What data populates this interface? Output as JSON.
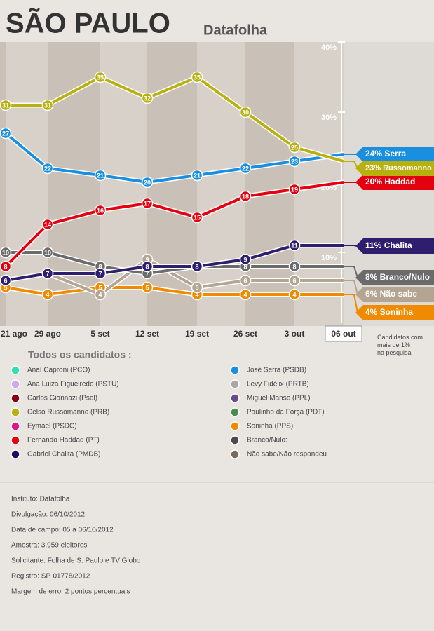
{
  "chart_data": {
    "type": "line",
    "title": "SÃO PAULO",
    "subtitle": "Datafolha",
    "categories": [
      "21 ago",
      "29 ago",
      "5 set",
      "12 set",
      "19 set",
      "26 set",
      "3 out",
      "06 out"
    ],
    "ylim": [
      0,
      40
    ],
    "yticks": [
      {
        "value": 10,
        "label": "10%"
      },
      {
        "value": 20,
        "label": "20%"
      },
      {
        "value": 30,
        "label": "30%"
      },
      {
        "value": 40,
        "label": "40%"
      }
    ],
    "series": [
      {
        "name": "Soninha",
        "color": "#f08a00",
        "values": [
          5,
          4,
          5,
          5,
          4,
          4,
          4,
          4
        ],
        "end_label": "4% Soninha"
      },
      {
        "name": "Não sabe",
        "color": "#b4a592",
        "values": [
          6,
          7,
          4,
          9,
          5,
          6,
          6,
          6
        ],
        "end_label": "6% Não sabe"
      },
      {
        "name": "Branco/Nulo",
        "color": "#6b6b6b",
        "values": [
          10,
          10,
          8,
          7,
          8,
          8,
          8,
          8
        ],
        "end_label": "8% Branco/Nulo"
      },
      {
        "name": "Chalita",
        "color": "#2e1f6e",
        "values": [
          6,
          7,
          7,
          8,
          8,
          9,
          11,
          11
        ],
        "end_label": "11% Chalita"
      },
      {
        "name": "Haddad",
        "color": "#e3000f",
        "values": [
          8,
          14,
          16,
          17,
          15,
          18,
          19,
          20
        ],
        "end_label": "20% Haddad"
      },
      {
        "name": "Serra",
        "color": "#1a8fe0",
        "values": [
          27,
          22,
          21,
          20,
          21,
          22,
          23,
          24
        ],
        "end_label": "24% Serra"
      },
      {
        "name": "Russomanno",
        "color": "#b8b00f",
        "values": [
          31,
          31,
          35,
          32,
          35,
          30,
          25,
          23
        ],
        "end_label": "23% Russomanno"
      }
    ],
    "note": "Candidatos com mais de 1% na pesquisa",
    "legend": {
      "title": "Todos os candidatos :",
      "items": [
        {
          "name": "Anaí Caproni (PCO)",
          "color": "#2fe0b0"
        },
        {
          "name": "Ana Luiza Figueiredo (PSTU)",
          "color": "#d0a8f0"
        },
        {
          "name": "Carlos Giannazi (Psol)",
          "color": "#8a0010"
        },
        {
          "name": "Celso Russomanno (PRB)",
          "color": "#b8b00f"
        },
        {
          "name": "Eymael (PSDC)",
          "color": "#e0168a"
        },
        {
          "name": "Fernando Haddad (PT)",
          "color": "#e3000f"
        },
        {
          "name": "Gabriel Chalita (PMDB)",
          "color": "#1a1060"
        },
        {
          "name": "José Serra (PSDB)",
          "color": "#1a8fe0"
        },
        {
          "name": "Levy Fidélix (PRTB)",
          "color": "#a8a8a8"
        },
        {
          "name": "Miguel Manso (PPL)",
          "color": "#6a4a8a"
        },
        {
          "name": "Paulinho da Força (PDT)",
          "color": "#4a8a4a"
        },
        {
          "name": "Soninha (PPS)",
          "color": "#f08a00"
        },
        {
          "name": "Branco/Nulo:",
          "color": "#4a4a4a"
        },
        {
          "name": "Não sabe/Não respondeu",
          "color": "#7a6a5a"
        }
      ]
    },
    "info": [
      "Instituto: Datafolha",
      "Divulgação: 06/10/2012",
      "Data de campo: 05 a 06/10/2012",
      "Amostra: 3.959 eleitores",
      "Solicitante: Folha de S. Paulo e TV Globo",
      "Registro: SP-01778/2012",
      "Margem de erro: 2 pontos percentuais"
    ]
  }
}
